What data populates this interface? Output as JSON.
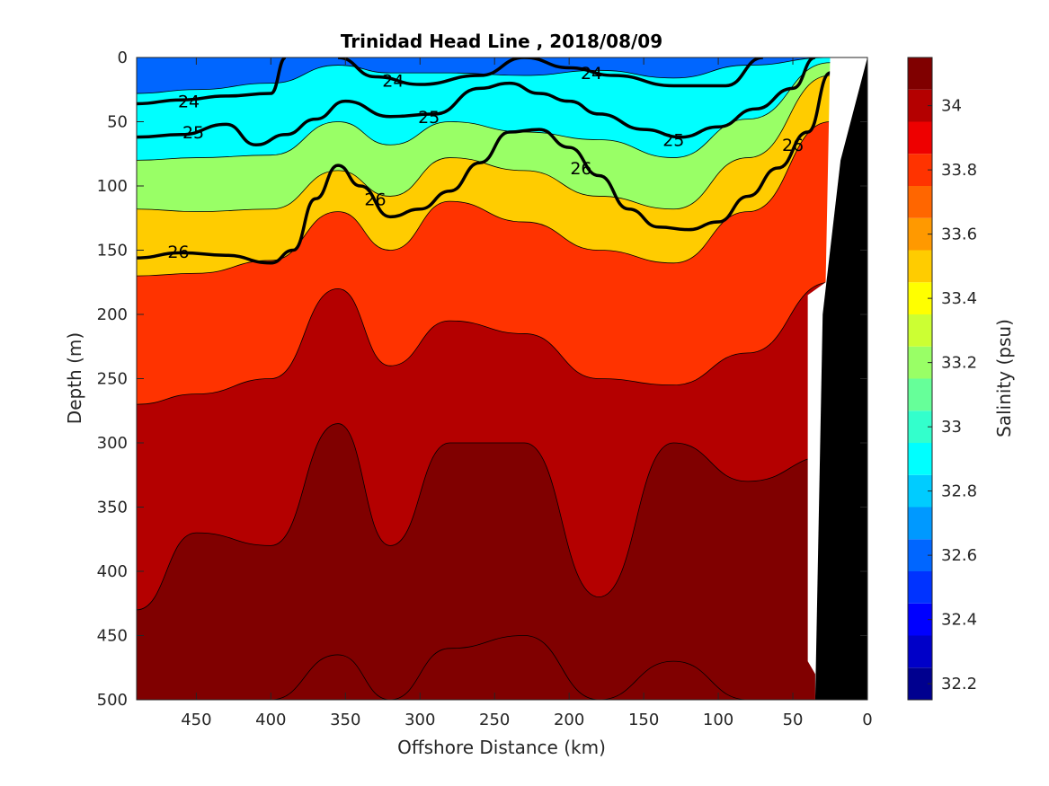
{
  "chart_data": {
    "type": "contour",
    "title": "Trinidad Head Line , 2018/08/09",
    "xlabel": "Offshore Distance (km)",
    "ylabel": "Depth (m)",
    "xlim": [
      490,
      0
    ],
    "ylim": [
      0,
      500
    ],
    "x_reversed": true,
    "y_reversed": true,
    "x_ticks": [
      450,
      400,
      350,
      300,
      250,
      200,
      150,
      100,
      50,
      0
    ],
    "y_ticks": [
      0,
      50,
      100,
      150,
      200,
      250,
      300,
      350,
      400,
      450,
      500
    ],
    "colorbar": {
      "label": "Salinity (psu)",
      "min": 32.15,
      "max": 34.15,
      "ticks": [
        32.2,
        32.4,
        32.6,
        32.8,
        33.0,
        33.2,
        33.4,
        33.6,
        33.8,
        34.0
      ],
      "tick_labels": [
        "32.2",
        "32.4",
        "32.6",
        "32.8",
        "33",
        "33.2",
        "33.4",
        "33.6",
        "33.8",
        "34"
      ],
      "levels": [
        32.15,
        32.25,
        32.35,
        32.45,
        32.55,
        32.65,
        32.75,
        32.85,
        32.95,
        33.05,
        33.15,
        33.25,
        33.35,
        33.45,
        33.55,
        33.65,
        33.75,
        33.85,
        33.95,
        34.05,
        34.15
      ],
      "colors": [
        "#00008f",
        "#0000c8",
        "#0000ff",
        "#0033ff",
        "#0066ff",
        "#0099ff",
        "#00ccff",
        "#00ffff",
        "#33ffcc",
        "#66ff99",
        "#99ff66",
        "#ccff33",
        "#ffff00",
        "#ffcc00",
        "#ff9900",
        "#ff6600",
        "#ff3300",
        "#ee0000",
        "#b40000",
        "#800000"
      ]
    },
    "salinity_bands": [
      {
        "top_level": 32.6,
        "depth": [
          0,
          0,
          0,
          0,
          0,
          0,
          0,
          0,
          0,
          0,
          0
        ]
      },
      {
        "top_level": 32.9,
        "depth": [
          28,
          25,
          20,
          6,
          12,
          12,
          14,
          10,
          16,
          6,
          0
        ]
      },
      {
        "top_level": 33.2,
        "depth": [
          80,
          78,
          76,
          50,
          68,
          50,
          58,
          64,
          78,
          48,
          4
        ]
      },
      {
        "top_level": 33.5,
        "depth": [
          118,
          120,
          118,
          88,
          108,
          78,
          88,
          108,
          118,
          78,
          14
        ]
      },
      {
        "top_level": 33.8,
        "depth": [
          170,
          168,
          158,
          120,
          150,
          112,
          128,
          150,
          160,
          120,
          50
        ]
      },
      {
        "top_level": 33.95,
        "depth": [
          270,
          262,
          250,
          180,
          240,
          205,
          215,
          250,
          255,
          230,
          175
        ]
      },
      {
        "top_level": 34.05,
        "depth": [
          430,
          370,
          380,
          285,
          380,
          300,
          300,
          420,
          300,
          330,
          310
        ]
      },
      {
        "top_level": 34.15,
        "depth": [
          500,
          500,
          500,
          465,
          500,
          460,
          450,
          500,
          470,
          500,
          500
        ]
      }
    ],
    "band_x": [
      490,
      450,
      400,
      355,
      320,
      280,
      230,
      180,
      130,
      80,
      25
    ],
    "density_contours": [
      {
        "level": 24,
        "label": "24",
        "x": [
          490,
          460,
          430,
          400,
          390
        ],
        "y": [
          36,
          33,
          30,
          28,
          0
        ]
      },
      {
        "level": 24,
        "label": "24",
        "x": [
          355,
          330,
          300,
          260,
          230,
          200,
          170,
          130,
          95,
          70
        ],
        "y": [
          0,
          15,
          21,
          14,
          0,
          8,
          14,
          22,
          22,
          0
        ]
      },
      {
        "level": 25,
        "label": "25",
        "x": [
          490,
          460,
          430,
          410,
          390,
          370,
          350,
          320,
          290,
          260,
          240,
          220,
          200,
          180,
          150,
          125,
          100,
          75,
          50,
          35
        ],
        "y": [
          62,
          60,
          52,
          68,
          60,
          48,
          34,
          46,
          44,
          24,
          20,
          28,
          34,
          44,
          56,
          62,
          54,
          40,
          24,
          0
        ]
      },
      {
        "level": 26,
        "label": "26",
        "x": [
          490,
          460,
          430,
          400,
          385,
          370,
          355,
          340,
          320,
          300,
          280,
          260,
          240,
          220,
          200,
          180,
          160,
          140,
          120,
          100,
          80,
          60,
          40,
          25
        ],
        "y": [
          156,
          152,
          154,
          160,
          150,
          110,
          84,
          100,
          124,
          118,
          104,
          82,
          58,
          56,
          70,
          92,
          118,
          132,
          134,
          128,
          108,
          86,
          58,
          12
        ]
      }
    ],
    "contour_labels": [
      {
        "text": "24",
        "x": 455,
        "y": 34
      },
      {
        "text": "24",
        "x": 318,
        "y": 18
      },
      {
        "text": "24",
        "x": 185,
        "y": 12
      },
      {
        "text": "25",
        "x": 452,
        "y": 58
      },
      {
        "text": "25",
        "x": 294,
        "y": 46
      },
      {
        "text": "25",
        "x": 130,
        "y": 64
      },
      {
        "text": "26",
        "x": 462,
        "y": 151
      },
      {
        "text": "26",
        "x": 330,
        "y": 110
      },
      {
        "text": "26",
        "x": 192,
        "y": 86
      },
      {
        "text": "26",
        "x": 50,
        "y": 68
      }
    ],
    "bathymetry": {
      "x": [
        0,
        18,
        30,
        35,
        25,
        0
      ],
      "y": [
        0,
        80,
        200,
        500,
        500,
        500
      ]
    }
  }
}
